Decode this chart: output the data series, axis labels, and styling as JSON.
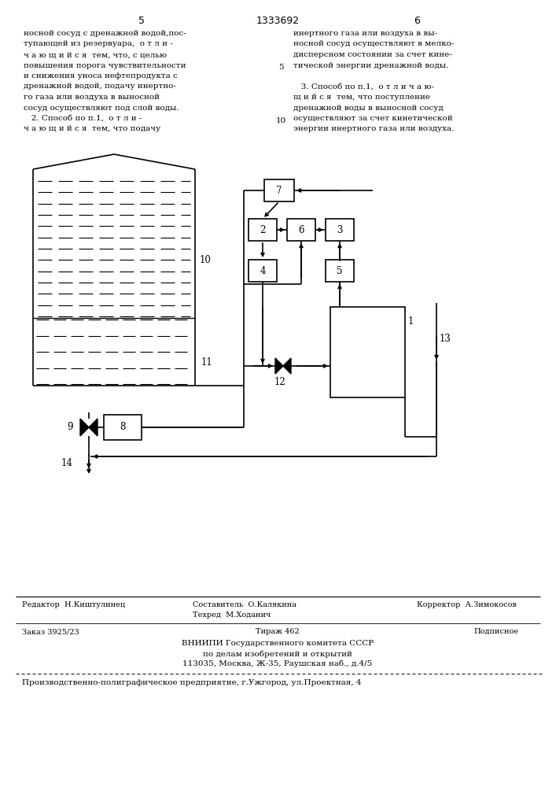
{
  "bg_color": "#ffffff",
  "line_color": "#000000",
  "title_number": "1333692",
  "page_left": "5",
  "page_right": "6",
  "text_left": [
    "носной сосуд с дренажной водой,пос-",
    "тупающей из резервуара,  о т л и -",
    "ч а ю щ и й с я  тем, что, с целью",
    "повышения порога чувствительности",
    "и снижения уноса нефтепродукта с",
    "дренажной водой, подачу инертно-",
    "го газа или воздуха в выносной",
    "сосуд осуществляют под слой воды.",
    "   2. Способ по п.1,  о т л и -",
    "ч а ю щ и й с я  тем, что подачу"
  ],
  "text_right": [
    "инертного газа или воздуха в вы-",
    "носной сосуд осуществляют в мелко-",
    "дисперсном состоянии за счет кине-",
    "тической энергии дренажной воды.",
    "",
    "   3. Способ по п.1,  о т л и ч а ю-",
    "щ и й с я  тем, что поступление",
    "дренажной воды в выносной сосуд",
    "осуществляют за счет кинетической",
    "энергии инертного газа или воздуха."
  ],
  "footer_editor": "Редактор  Н.Киштулинец",
  "footer_composer": "Составитель  О.Калякина",
  "footer_corrector": "Корректор  А.Зимокосов",
  "footer_tech": "Техред  М.Ходанич",
  "footer_order": "Заказ 3925/23",
  "footer_tirazh": "Тираж 462",
  "footer_podpis": "Подписное",
  "footer_vniipи": "ВНИИПИ Государственного комитета СССР",
  "footer_po_delam": "по делам изобретений и открытий",
  "footer_address": "113035, Москва, Ж-35, Раушская наб., д.4/5",
  "footer_proizv": "Производственно-полиграфическое предприятие, г.Ужгород, ул.Проектная, 4"
}
